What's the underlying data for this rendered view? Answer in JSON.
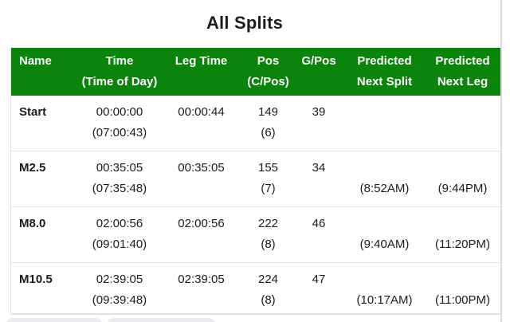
{
  "title": "All Splits",
  "colors": {
    "header_bg": "#0b840b",
    "header_text": "#ffffff",
    "body_text": "#1c1c1e",
    "divider": "#e4e4e7"
  },
  "table": {
    "columns": [
      {
        "line1": "Name",
        "line2": ""
      },
      {
        "line1": "Time",
        "line2": "(Time of Day)"
      },
      {
        "line1": "Leg Time",
        "line2": ""
      },
      {
        "line1": "Pos",
        "line2": "(C/Pos)"
      },
      {
        "line1": "G/Pos",
        "line2": ""
      },
      {
        "line1": "Predicted",
        "line2": "Next Split"
      },
      {
        "line1": "Predicted",
        "line2": "Next Leg"
      }
    ],
    "rows": [
      {
        "name": "Start",
        "time": "00:00:00",
        "time_of_day": "(07:00:43)",
        "leg_time": "00:00:44",
        "pos": "149",
        "cpos": "(6)",
        "gpos": "39",
        "pred_next_split": "",
        "pred_next_leg": ""
      },
      {
        "name": "M2.5",
        "time": "00:35:05",
        "time_of_day": "(07:35:48)",
        "leg_time": "00:35:05",
        "pos": "155",
        "cpos": "(7)",
        "gpos": "34",
        "pred_next_split": "(8:52AM)",
        "pred_next_leg": "(9:44PM)"
      },
      {
        "name": "M8.0",
        "time": "02:00:56",
        "time_of_day": "(09:01:40)",
        "leg_time": "02:00:56",
        "pos": "222",
        "cpos": "(8)",
        "gpos": "46",
        "pred_next_split": "(9:40AM)",
        "pred_next_leg": "(11:20PM)"
      },
      {
        "name": "M10.5",
        "time": "02:39:05",
        "time_of_day": "(09:39:48)",
        "leg_time": "02:39:05",
        "pos": "224",
        "cpos": "(8)",
        "gpos": "47",
        "pred_next_split": "(10:17AM)",
        "pred_next_leg": "(11:00PM)"
      }
    ]
  }
}
